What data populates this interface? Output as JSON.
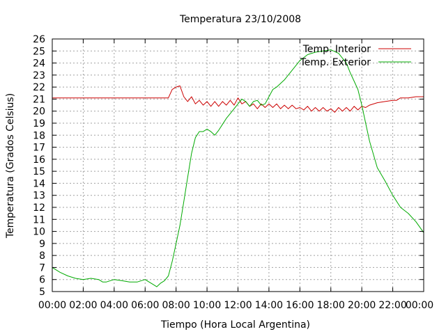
{
  "chart_data": {
    "type": "line",
    "title": "Temperatura 23/10/2008",
    "xlabel": "Tiempo (Hora Local Argentina)",
    "ylabel": "Temperatura (Grados Celsius)",
    "x_ticks": [
      "00:00",
      "02:00",
      "04:00",
      "06:00",
      "08:00",
      "10:00",
      "12:00",
      "14:00",
      "16:00",
      "18:00",
      "20:00",
      "22:00",
      "00:00"
    ],
    "xlim": [
      0,
      24
    ],
    "ylim": [
      5,
      26
    ],
    "y_ticks": [
      5,
      6,
      7,
      8,
      9,
      10,
      11,
      12,
      13,
      14,
      15,
      16,
      17,
      18,
      19,
      20,
      21,
      22,
      23,
      24,
      25,
      26
    ],
    "grid": true,
    "legend_position": "top-right",
    "series": [
      {
        "name": "Temp. Interior",
        "color": "#cc0000",
        "x": [
          0,
          0.5,
          1,
          2,
          3,
          4,
          5,
          6,
          7,
          7.5,
          7.75,
          8,
          8.25,
          8.5,
          8.75,
          9,
          9.25,
          9.5,
          9.75,
          10,
          10.25,
          10.5,
          10.75,
          11,
          11.25,
          11.5,
          11.75,
          12,
          12.25,
          12.5,
          12.75,
          13,
          13.25,
          13.5,
          13.75,
          14,
          14.25,
          14.5,
          14.75,
          15,
          15.25,
          15.5,
          15.75,
          16,
          16.25,
          16.5,
          16.75,
          17,
          17.25,
          17.5,
          17.75,
          18,
          18.25,
          18.5,
          18.75,
          19,
          19.25,
          19.5,
          19.75,
          20,
          20.25,
          20.5,
          21,
          21.5,
          22,
          22.25,
          22.5,
          23,
          23.5,
          24
        ],
        "y": [
          21.1,
          21.1,
          21.1,
          21.1,
          21.1,
          21.1,
          21.1,
          21.1,
          21.1,
          21.1,
          21.8,
          22.0,
          22.1,
          21.2,
          20.8,
          21.2,
          20.6,
          20.9,
          20.5,
          20.8,
          20.4,
          20.8,
          20.4,
          20.8,
          20.5,
          20.9,
          20.5,
          21.1,
          20.6,
          20.8,
          20.4,
          20.6,
          20.2,
          20.6,
          20.3,
          20.6,
          20.3,
          20.6,
          20.2,
          20.5,
          20.2,
          20.5,
          20.2,
          20.3,
          20.1,
          20.4,
          20.0,
          20.3,
          20.0,
          20.3,
          20.0,
          20.2,
          19.9,
          20.3,
          20.0,
          20.3,
          20.0,
          20.4,
          20.1,
          20.4,
          20.3,
          20.5,
          20.7,
          20.8,
          20.9,
          20.9,
          21.1,
          21.1,
          21.2,
          21.2
        ]
      },
      {
        "name": "Temp. Exterior",
        "color": "#00aa00",
        "x": [
          0,
          0.5,
          1,
          1.5,
          2,
          2.5,
          3,
          3.25,
          3.5,
          4,
          4.5,
          5,
          5.5,
          6,
          6.25,
          6.5,
          6.75,
          7,
          7.25,
          7.5,
          7.75,
          8,
          8.25,
          8.5,
          8.75,
          9,
          9.25,
          9.5,
          9.75,
          10,
          10.25,
          10.5,
          10.75,
          11,
          11.25,
          11.5,
          11.75,
          12,
          12.25,
          12.5,
          12.75,
          13,
          13.25,
          13.5,
          13.75,
          14,
          14.25,
          14.5,
          15,
          15.5,
          16,
          16.5,
          17,
          17.5,
          18,
          18.5,
          19,
          19.25,
          19.5,
          19.75,
          20,
          20.25,
          20.5,
          21,
          21.5,
          22,
          22.5,
          23,
          23.5,
          24
        ],
        "y": [
          7.0,
          6.6,
          6.3,
          6.1,
          6.0,
          6.1,
          6.0,
          5.8,
          5.8,
          6.0,
          5.9,
          5.8,
          5.8,
          6.0,
          5.8,
          5.6,
          5.4,
          5.7,
          5.9,
          6.3,
          7.5,
          9.0,
          10.5,
          12.5,
          14.5,
          16.5,
          17.8,
          18.3,
          18.3,
          18.5,
          18.3,
          18.0,
          18.4,
          18.9,
          19.4,
          19.8,
          20.2,
          20.6,
          21.0,
          20.8,
          20.4,
          20.8,
          20.9,
          20.5,
          20.6,
          21.2,
          21.8,
          22.0,
          22.6,
          23.4,
          24.2,
          24.7,
          24.9,
          25.0,
          25.1,
          24.8,
          24.0,
          23.2,
          22.5,
          21.8,
          20.5,
          19.0,
          17.5,
          15.3,
          14.2,
          13.0,
          12.0,
          11.5,
          10.8,
          9.9
        ]
      }
    ]
  }
}
